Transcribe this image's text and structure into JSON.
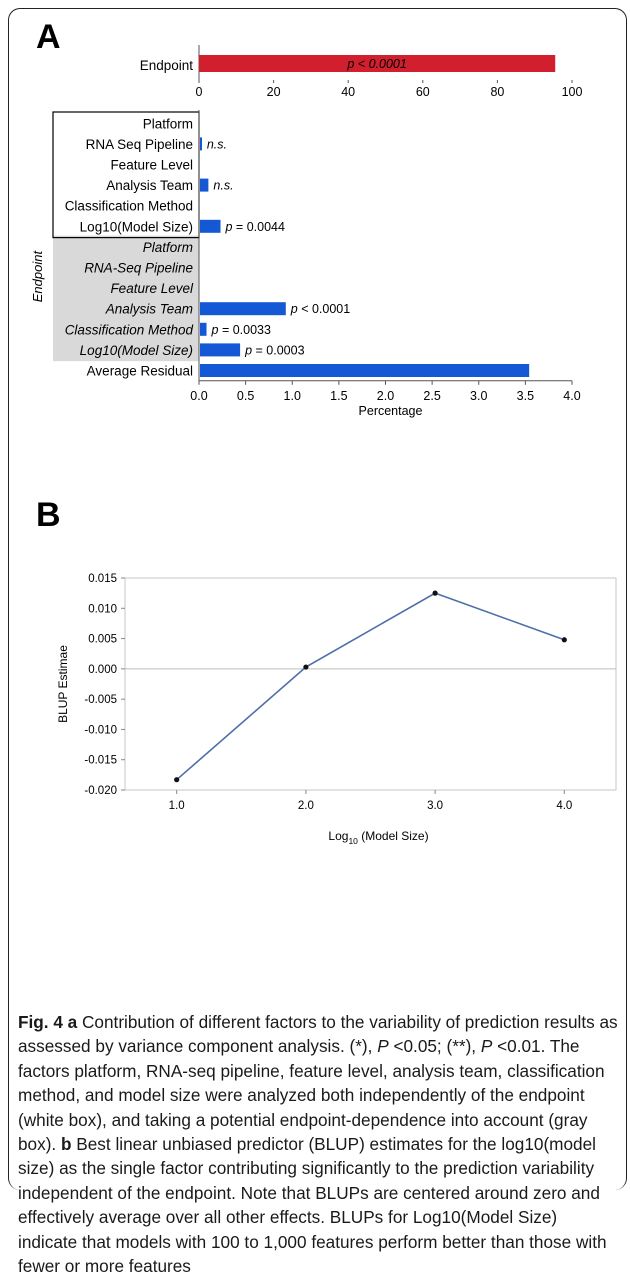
{
  "panels": {
    "a_letter": "A",
    "b_letter": "B"
  },
  "chart_data": [
    {
      "type": "bar",
      "panel": "A-top",
      "categories": [
        "Endpoint"
      ],
      "values": [
        95.5
      ],
      "annotations": [
        "p < 0.0001"
      ],
      "xlim": [
        0,
        100
      ],
      "xticks": [
        "0",
        "20",
        "40",
        "60",
        "80",
        "100"
      ],
      "bar_color": "#d11f2e"
    },
    {
      "type": "bar",
      "panel": "A-bottom",
      "ylabel": "Endpoint",
      "xlabel": "Percentage",
      "xlim": [
        0,
        4.0
      ],
      "xticks": [
        "0.0",
        "0.5",
        "1.0",
        "1.5",
        "2.0",
        "2.5",
        "3.0",
        "3.5",
        "4.0"
      ],
      "bar_color": "#1558d6",
      "categories": [
        "Platform",
        "RNA Seq Pipeline",
        "Feature Level",
        "Analysis Team",
        "Classification Method",
        "Log10(Model Size)",
        "Platform",
        "RNA-Seq Pipeline",
        "Feature Level",
        "Analysis Team",
        "Classification Method",
        "Log10(Model Size)",
        "Average Residual"
      ],
      "italic": [
        false,
        false,
        false,
        false,
        false,
        false,
        true,
        true,
        true,
        true,
        true,
        true,
        false
      ],
      "values": [
        0,
        0.02,
        0,
        0.09,
        0,
        0.22,
        0,
        0,
        0,
        0.92,
        0.07,
        0.43,
        3.53
      ],
      "annotations": [
        "",
        "n.s.",
        "",
        "n.s.",
        "",
        "p = 0.0044",
        "",
        "",
        "",
        "p < 0.0001",
        "p = 0.0033",
        "p = 0.0003",
        ""
      ],
      "groups": [
        {
          "box": "white",
          "rows": [
            0,
            5
          ]
        },
        {
          "box": "gray",
          "rows": [
            6,
            11
          ]
        }
      ]
    },
    {
      "type": "line",
      "panel": "B",
      "xlabel": "Log10 (Model Size)",
      "ylabel": "BLUP Estimae",
      "x": [
        1.0,
        2.0,
        3.0,
        4.0
      ],
      "y": [
        -0.0183,
        0.0003,
        0.0125,
        0.0048
      ],
      "xticks": [
        "1.0",
        "2.0",
        "3.0",
        "4.0"
      ],
      "yticks": [
        "0.015",
        "0.010",
        "0.005",
        "0.000",
        "-0.005",
        "-0.010",
        "-0.015",
        "-0.020"
      ],
      "ylim": [
        -0.02,
        0.015
      ],
      "xlim": [
        0.6,
        4.4
      ],
      "line_color": "#4e6fa8"
    }
  ],
  "caption": {
    "fig_label": "Fig. 4",
    "a_marker": "a",
    "a_text": " Contribution of different factors to the variability of prediction results as assessed by variance component analysis. (*), ",
    "p1": "P",
    "p1_text": " <0.05; (**), ",
    "p2": "P",
    "p2_text": " <0.01. The factors platform, RNA-seq pipeline, feature level, analysis team, classification method, and model size were analyzed both independently of the endpoint (white box), and taking a potential endpoint-dependence into account (gray box). ",
    "b_marker": "b",
    "b_text": " Best linear unbiased predictor (BLUP) estimates for the log10(model size) as the single factor contributing significantly to the prediction variability independent of the endpoint. Note that BLUPs are centered around zero and effectively average over all other effects. BLUPs for Log10(Model Size) indicate that models with 100 to 1,000 features perform better than those with fewer or more features"
  }
}
